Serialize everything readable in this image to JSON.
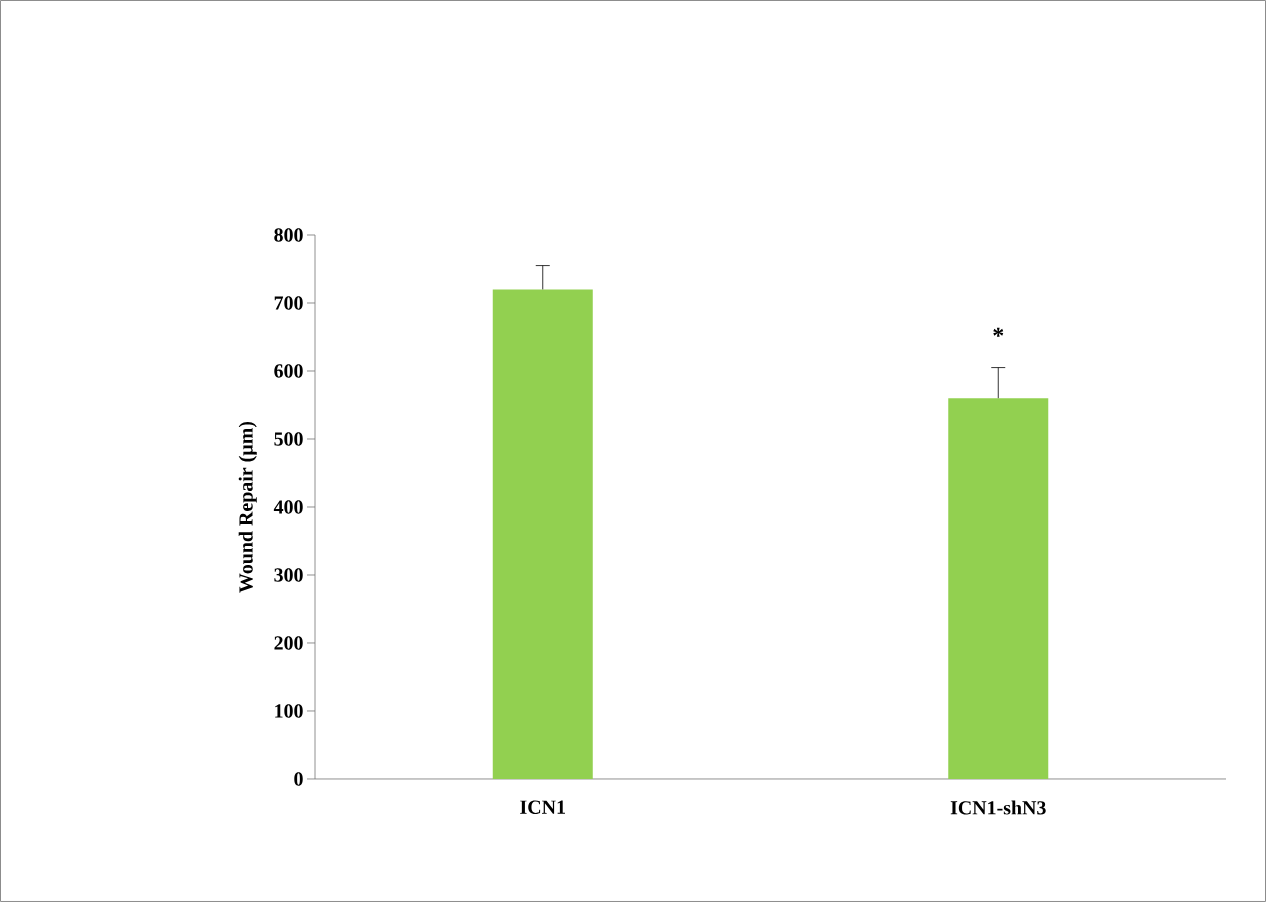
{
  "chart_data": {
    "type": "bar",
    "ylabel": "Wound Repair (µm)",
    "categories": [
      "ICN1",
      "ICN1-shN3"
    ],
    "values": [
      720,
      560
    ],
    "color": "#92d050",
    "errors": [
      [
        720,
        755
      ],
      [
        560,
        605
      ]
    ],
    "ylim": [
      0,
      800
    ],
    "yticks": [
      0,
      100,
      200,
      300,
      400,
      500,
      600,
      700,
      800
    ],
    "annotations": [
      "*"
    ]
  }
}
